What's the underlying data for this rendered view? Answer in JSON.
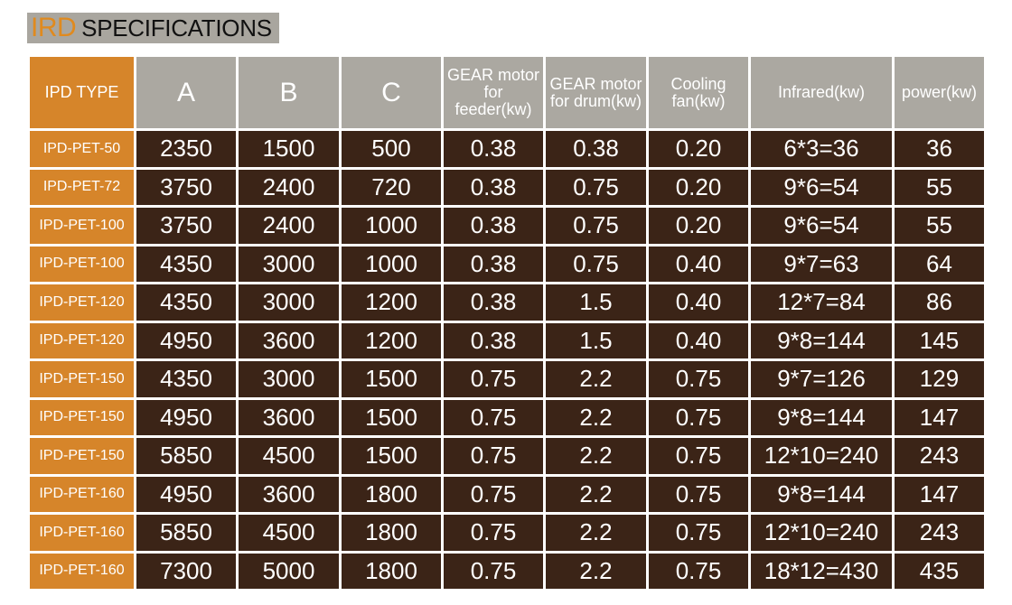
{
  "title": {
    "accent": "IRD",
    "main": "SPECIFICATIONS"
  },
  "table": {
    "type_header": "IPD TYPE",
    "columns": [
      "A",
      "B",
      "C",
      "GEAR motor for feeder(kw)",
      "GEAR motor for drum(kw)",
      "Cooling fan(kw)",
      "Infrared(kw)",
      "power(kw)"
    ],
    "rows": [
      {
        "type": "IPD-PET-50",
        "values": [
          "2350",
          "1500",
          "500",
          "0.38",
          "0.38",
          "0.20",
          "6*3=36",
          "36"
        ]
      },
      {
        "type": "IPD-PET-72",
        "values": [
          "3750",
          "2400",
          "720",
          "0.38",
          "0.75",
          "0.20",
          "9*6=54",
          "55"
        ]
      },
      {
        "type": "IPD-PET-100",
        "values": [
          "3750",
          "2400",
          "1000",
          "0.38",
          "0.75",
          "0.20",
          "9*6=54",
          "55"
        ]
      },
      {
        "type": "IPD-PET-100",
        "values": [
          "4350",
          "3000",
          "1000",
          "0.38",
          "0.75",
          "0.40",
          "9*7=63",
          "64"
        ]
      },
      {
        "type": "IPD-PET-120",
        "values": [
          "4350",
          "3000",
          "1200",
          "0.38",
          "1.5",
          "0.40",
          "12*7=84",
          "86"
        ]
      },
      {
        "type": "IPD-PET-120",
        "values": [
          "4950",
          "3600",
          "1200",
          "0.38",
          "1.5",
          "0.40",
          "9*8=144",
          "145"
        ]
      },
      {
        "type": "IPD-PET-150",
        "values": [
          "4350",
          "3000",
          "1500",
          "0.75",
          "2.2",
          "0.75",
          "9*7=126",
          "129"
        ]
      },
      {
        "type": "IPD-PET-150",
        "values": [
          "4950",
          "3600",
          "1500",
          "0.75",
          "2.2",
          "0.75",
          "9*8=144",
          "147"
        ]
      },
      {
        "type": "IPD-PET-150",
        "values": [
          "5850",
          "4500",
          "1500",
          "0.75",
          "2.2",
          "0.75",
          "12*10=240",
          "243"
        ]
      },
      {
        "type": "IPD-PET-160",
        "values": [
          "4950",
          "3600",
          "1800",
          "0.75",
          "2.2",
          "0.75",
          "9*8=144",
          "147"
        ]
      },
      {
        "type": "IPD-PET-160",
        "values": [
          "5850",
          "4500",
          "1800",
          "0.75",
          "2.2",
          "0.75",
          "12*10=240",
          "243"
        ]
      },
      {
        "type": "IPD-PET-160",
        "values": [
          "7300",
          "5000",
          "1800",
          "0.75",
          "2.2",
          "0.75",
          "18*12=430",
          "435"
        ]
      }
    ]
  },
  "colors": {
    "accent_orange": "#d6852a",
    "title_orange": "#e08a1e",
    "header_gray": "#aba8a1",
    "cell_brown": "#3b2417"
  }
}
